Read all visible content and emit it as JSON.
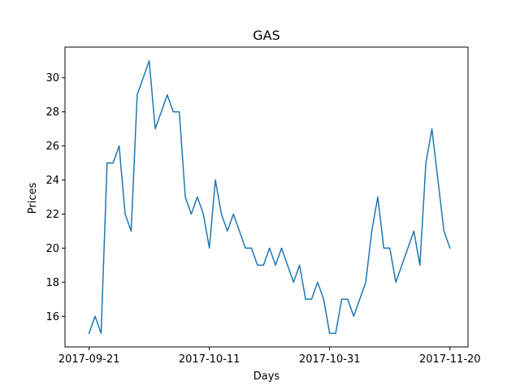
{
  "chart_data": {
    "type": "line",
    "title": "GAS",
    "xlabel": "Days",
    "ylabel": "Prices",
    "x_ticks": [
      "2017-09-21",
      "2017-10-11",
      "2017-10-31",
      "2017-11-20"
    ],
    "y_ticks": [
      16,
      18,
      20,
      22,
      24,
      26,
      28,
      30
    ],
    "xlim": [
      "2017-09-17",
      "2017-11-23"
    ],
    "ylim": [
      14.2,
      31.8
    ],
    "grid": false,
    "series": [
      {
        "color": "#1f77b4",
        "x": [
          "2017-09-21",
          "2017-09-22",
          "2017-09-23",
          "2017-09-24",
          "2017-09-25",
          "2017-09-26",
          "2017-09-27",
          "2017-09-28",
          "2017-09-29",
          "2017-09-30",
          "2017-10-01",
          "2017-10-02",
          "2017-10-03",
          "2017-10-04",
          "2017-10-05",
          "2017-10-06",
          "2017-10-07",
          "2017-10-08",
          "2017-10-09",
          "2017-10-10",
          "2017-10-11",
          "2017-10-12",
          "2017-10-13",
          "2017-10-14",
          "2017-10-15",
          "2017-10-16",
          "2017-10-17",
          "2017-10-18",
          "2017-10-19",
          "2017-10-20",
          "2017-10-21",
          "2017-10-22",
          "2017-10-23",
          "2017-10-24",
          "2017-10-25",
          "2017-10-26",
          "2017-10-27",
          "2017-10-28",
          "2017-10-29",
          "2017-10-30",
          "2017-10-31",
          "2017-11-01",
          "2017-11-02",
          "2017-11-03",
          "2017-11-04",
          "2017-11-05",
          "2017-11-06",
          "2017-11-07",
          "2017-11-08",
          "2017-11-09",
          "2017-11-10",
          "2017-11-11",
          "2017-11-12",
          "2017-11-13",
          "2017-11-14",
          "2017-11-15",
          "2017-11-16",
          "2017-11-17",
          "2017-11-18",
          "2017-11-19",
          "2017-11-20"
        ],
        "values": [
          15,
          16,
          15,
          25,
          25,
          26,
          22,
          21,
          29,
          30,
          31,
          27,
          28,
          29,
          28,
          28,
          23,
          22,
          23,
          22,
          20,
          24,
          22,
          21,
          22,
          21,
          20,
          20,
          19,
          19,
          20,
          19,
          20,
          19,
          18,
          19,
          17,
          17,
          18,
          17,
          15,
          15,
          17,
          17,
          16,
          17,
          18,
          21,
          23,
          20,
          20,
          18,
          19,
          20,
          21,
          19,
          25,
          27,
          24,
          21,
          20
        ]
      }
    ]
  }
}
